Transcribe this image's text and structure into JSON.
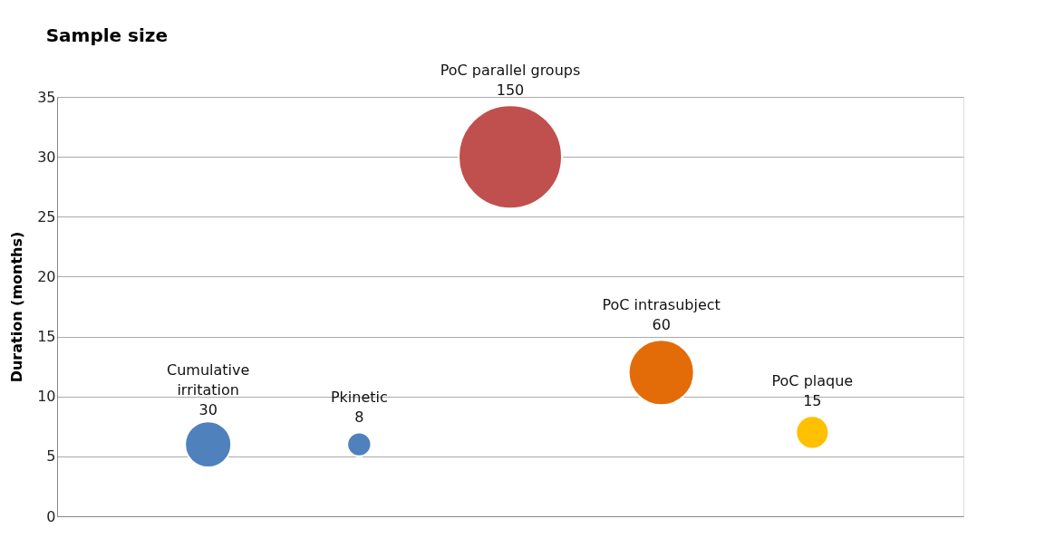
{
  "chart_data": {
    "type": "bubble",
    "title": "Sample size",
    "ylabel": "Duration (months)",
    "categories": [
      null,
      null,
      null,
      null,
      null
    ],
    "ylim": [
      0,
      35
    ],
    "yticks": [
      0,
      5,
      10,
      15,
      20,
      25,
      30,
      35
    ],
    "grid": "y",
    "series": [
      {
        "name": "Cumulative irritation",
        "color": "#4f81bd",
        "values": [
          6,
          null,
          null,
          null,
          null
        ],
        "sizes": [
          30,
          null,
          null,
          null,
          null
        ],
        "value_labels": [
          "30",
          null,
          null,
          null,
          null
        ]
      },
      {
        "name": "Pkinetic",
        "color": "#4f81bd",
        "values": [
          null,
          6,
          null,
          null,
          null
        ],
        "sizes": [
          null,
          8,
          null,
          null,
          null
        ],
        "value_labels": [
          null,
          "8",
          null,
          null,
          null
        ]
      },
      {
        "name": "PoC parallel groups",
        "color": "#c0504d",
        "values": [
          null,
          null,
          30,
          null,
          null
        ],
        "sizes": [
          null,
          null,
          150,
          null,
          null
        ],
        "value_labels": [
          null,
          null,
          "150",
          null,
          null
        ]
      },
      {
        "name": "PoC intrasubject",
        "color": "#e36c09",
        "values": [
          null,
          null,
          null,
          12,
          null
        ],
        "sizes": [
          null,
          null,
          null,
          60,
          null
        ],
        "value_labels": [
          null,
          null,
          null,
          "60",
          null
        ]
      },
      {
        "name": "PoC plaque",
        "color": "#ffc000",
        "values": [
          null,
          null,
          null,
          null,
          7
        ],
        "sizes": [
          null,
          null,
          null,
          null,
          15
        ],
        "value_labels": [
          null,
          null,
          null,
          null,
          "15"
        ]
      }
    ]
  }
}
